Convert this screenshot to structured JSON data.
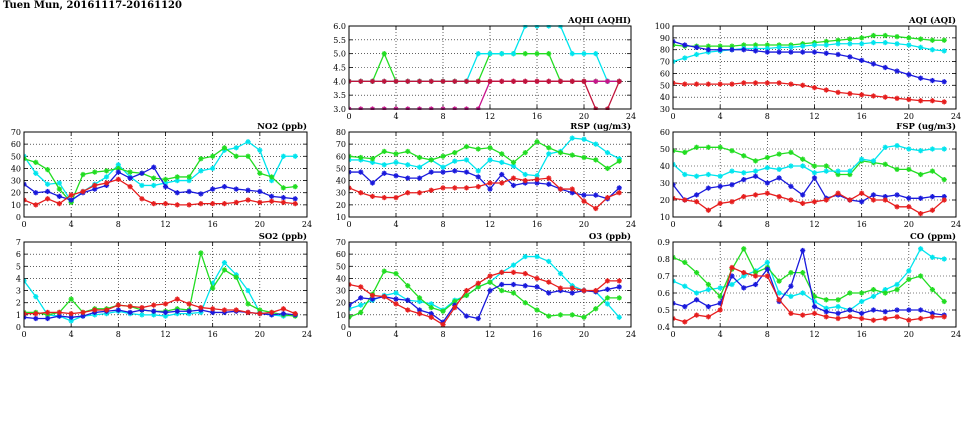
{
  "title": "Tuen Mun, 20161117-20161120",
  "series_colors": {
    "cyan": "#00e5ee",
    "green": "#22dd22",
    "blue": "#1a1adc",
    "red": "#e61e1e",
    "crimson": "#c0143c",
    "magenta": "#c8148c"
  },
  "chart_data": [
    {
      "id": "aqhi",
      "type": "line",
      "title": "AQHI (AQHI)",
      "xlim": [
        0,
        24
      ],
      "ylim": [
        3,
        6
      ],
      "xticks": [
        0,
        4,
        8,
        12,
        16,
        20,
        24
      ],
      "yticks": [
        "3.0",
        "3.5",
        "4.0",
        "4.5",
        "5.0",
        "5.5",
        "6.0"
      ],
      "grid": true,
      "series": [
        {
          "color": "green",
          "values": [
            4,
            4,
            4,
            5,
            4,
            4,
            4,
            4,
            4,
            4,
            4,
            4,
            5,
            5,
            5,
            5,
            5,
            5,
            4,
            4,
            4,
            4,
            4,
            4
          ]
        },
        {
          "color": "cyan",
          "values": [
            4,
            4,
            4,
            4,
            4,
            4,
            4,
            4,
            4,
            4,
            4,
            5,
            5,
            5,
            5,
            6,
            6,
            6,
            6,
            5,
            5,
            5,
            4,
            4
          ]
        },
        {
          "color": "magenta",
          "values": [
            3,
            3,
            3,
            3,
            3,
            3,
            3,
            3,
            3,
            3,
            3,
            3,
            4,
            4,
            4,
            4,
            4,
            4,
            4,
            4,
            4,
            4,
            4,
            4
          ]
        },
        {
          "color": "crimson",
          "values": [
            4,
            4,
            4,
            4,
            4,
            4,
            4,
            4,
            4,
            4,
            4,
            4,
            4,
            4,
            4,
            4,
            4,
            4,
            4,
            4,
            4,
            3,
            3,
            4
          ]
        }
      ]
    },
    {
      "id": "aqi",
      "type": "line",
      "title": "AQI (AQI)",
      "xlim": [
        0,
        24
      ],
      "ylim": [
        30,
        100
      ],
      "xticks": [
        0,
        4,
        8,
        12,
        16,
        20,
        24
      ],
      "yticks": [
        "30",
        "40",
        "50",
        "60",
        "70",
        "80",
        "90",
        "100"
      ],
      "grid": true,
      "series": [
        {
          "color": "green",
          "values": [
            84,
            83,
            83,
            83,
            83,
            83,
            84,
            84,
            84,
            84,
            84,
            85,
            86,
            87,
            88,
            89,
            90,
            92,
            92,
            91,
            90,
            89,
            88,
            88
          ]
        },
        {
          "color": "cyan",
          "values": [
            70,
            73,
            76,
            78,
            79,
            80,
            81,
            81,
            81,
            82,
            82,
            83,
            84,
            84,
            85,
            85,
            85,
            86,
            86,
            85,
            84,
            82,
            80,
            79
          ]
        },
        {
          "color": "blue",
          "values": [
            87,
            84,
            82,
            80,
            80,
            80,
            80,
            79,
            78,
            78,
            78,
            78,
            78,
            77,
            76,
            74,
            71,
            68,
            65,
            62,
            59,
            56,
            54,
            53
          ]
        },
        {
          "color": "red",
          "values": [
            52,
            51,
            51,
            51,
            51,
            51,
            52,
            52,
            52,
            52,
            51,
            50,
            48,
            46,
            44,
            43,
            42,
            41,
            40,
            39,
            38,
            37,
            37,
            36
          ]
        }
      ]
    },
    {
      "id": "no2",
      "type": "line",
      "title": "NO2 (ppb)",
      "xlim": [
        0,
        24
      ],
      "ylim": [
        0,
        70
      ],
      "xticks": [
        0,
        4,
        8,
        12,
        16,
        20,
        24
      ],
      "yticks": [
        "0",
        "10",
        "20",
        "30",
        "40",
        "50",
        "60",
        "70"
      ],
      "grid": true,
      "series": [
        {
          "color": "cyan",
          "values": [
            50,
            36,
            27,
            28,
            13,
            21,
            27,
            33,
            43,
            33,
            26,
            26,
            28,
            30,
            30,
            38,
            40,
            55,
            57,
            62,
            55,
            30,
            50,
            50
          ]
        },
        {
          "color": "green",
          "values": [
            48,
            45,
            39,
            23,
            12,
            35,
            37,
            38,
            40,
            37,
            36,
            32,
            31,
            33,
            33,
            48,
            50,
            57,
            50,
            50,
            36,
            33,
            24,
            25
          ]
        },
        {
          "color": "blue",
          "values": [
            27,
            20,
            21,
            17,
            14,
            20,
            23,
            26,
            37,
            32,
            36,
            41,
            25,
            20,
            21,
            19,
            23,
            25,
            23,
            22,
            21,
            17,
            16,
            15
          ]
        },
        {
          "color": "red",
          "values": [
            14,
            10,
            15,
            11,
            18,
            21,
            26,
            28,
            31,
            25,
            15,
            11,
            11,
            10,
            10,
            11,
            11,
            11,
            12,
            14,
            12,
            13,
            12,
            11
          ]
        }
      ]
    },
    {
      "id": "rsp",
      "type": "line",
      "title": "RSP (ug/m3)",
      "xlim": [
        0,
        24
      ],
      "ylim": [
        10,
        80
      ],
      "xticks": [
        0,
        4,
        8,
        12,
        16,
        20,
        24
      ],
      "yticks": [
        "10",
        "20",
        "30",
        "40",
        "50",
        "60",
        "70",
        "80"
      ],
      "grid": true,
      "series": [
        {
          "color": "cyan",
          "values": [
            57,
            57,
            55,
            53,
            55,
            53,
            51,
            57,
            51,
            56,
            57,
            48,
            57,
            55,
            52,
            45,
            44,
            62,
            64,
            75,
            74,
            70,
            63,
            58
          ]
        },
        {
          "color": "green",
          "values": [
            60,
            59,
            58,
            64,
            62,
            64,
            59,
            57,
            60,
            63,
            68,
            66,
            67,
            62,
            55,
            63,
            72,
            67,
            63,
            61,
            59,
            57,
            50,
            56
          ]
        },
        {
          "color": "blue",
          "values": [
            47,
            47,
            38,
            46,
            44,
            42,
            42,
            47,
            47,
            48,
            47,
            43,
            33,
            45,
            36,
            38,
            38,
            37,
            33,
            30,
            28,
            28,
            25,
            34
          ]
        },
        {
          "color": "red",
          "values": [
            34,
            30,
            27,
            26,
            26,
            30,
            30,
            32,
            34,
            34,
            34,
            35,
            38,
            38,
            42,
            40,
            41,
            42,
            33,
            33,
            23,
            17,
            26,
            30
          ]
        }
      ]
    },
    {
      "id": "fsp",
      "type": "line",
      "title": "FSP (ug/m3)",
      "xlim": [
        0,
        24
      ],
      "ylim": [
        10,
        60
      ],
      "xticks": [
        0,
        4,
        8,
        12,
        16,
        20,
        24
      ],
      "yticks": [
        "10",
        "20",
        "30",
        "40",
        "50",
        "60"
      ],
      "grid": true,
      "series": [
        {
          "color": "green",
          "values": [
            49,
            48,
            51,
            51,
            51,
            49,
            46,
            43,
            45,
            47,
            48,
            44,
            40,
            40,
            35,
            35,
            43,
            42,
            41,
            38,
            38,
            35,
            37,
            32
          ]
        },
        {
          "color": "cyan",
          "values": [
            41,
            35,
            34,
            35,
            34,
            37,
            36,
            37,
            39,
            38,
            40,
            40,
            36,
            37,
            37,
            37,
            44,
            43,
            51,
            52,
            50,
            49,
            50,
            50
          ]
        },
        {
          "color": "blue",
          "values": [
            29,
            20,
            23,
            27,
            28,
            29,
            32,
            34,
            30,
            33,
            28,
            23,
            33,
            21,
            23,
            20,
            19,
            23,
            22,
            23,
            21,
            21,
            22,
            22
          ]
        },
        {
          "color": "red",
          "values": [
            21,
            20,
            19,
            14,
            18,
            19,
            22,
            23,
            24,
            22,
            20,
            18,
            19,
            20,
            24,
            20,
            24,
            20,
            20,
            16,
            16,
            12,
            14,
            20
          ]
        }
      ]
    },
    {
      "id": "so2",
      "type": "line",
      "title": "SO2 (ppb)",
      "xlim": [
        0,
        24
      ],
      "ylim": [
        0,
        7
      ],
      "xticks": [
        0,
        4,
        8,
        12,
        16,
        20,
        24
      ],
      "yticks": [
        "0",
        "1",
        "2",
        "3",
        "4",
        "5",
        "6",
        "7"
      ],
      "grid": true,
      "series": [
        {
          "color": "cyan",
          "values": [
            3.8,
            2.5,
            1.0,
            0.9,
            0.5,
            0.9,
            1.0,
            1.1,
            1.3,
            1.1,
            1.0,
            1.0,
            0.9,
            1.1,
            1.1,
            1.2,
            3.6,
            5.3,
            4.3,
            3.0,
            1.2,
            1.0,
            0.9,
            1.0
          ]
        },
        {
          "color": "green",
          "values": [
            1.2,
            1.2,
            1.0,
            1.2,
            2.3,
            1.2,
            1.5,
            1.5,
            1.8,
            1.7,
            1.4,
            1.3,
            1.3,
            1.5,
            1.4,
            6.1,
            3.2,
            4.7,
            4.1,
            1.9,
            1.4,
            1.2,
            1.0,
            0.9
          ]
        },
        {
          "color": "blue",
          "values": [
            0.8,
            0.7,
            0.7,
            0.9,
            0.8,
            0.9,
            1.2,
            1.3,
            1.4,
            1.2,
            1.4,
            1.3,
            1.2,
            1.3,
            1.3,
            1.4,
            1.2,
            1.2,
            1.3,
            1.2,
            1.1,
            1.0,
            1.1,
            1.0
          ]
        },
        {
          "color": "red",
          "values": [
            1.1,
            1.1,
            1.2,
            1.2,
            1.1,
            1.2,
            1.4,
            1.4,
            1.8,
            1.7,
            1.6,
            1.8,
            1.9,
            2.3,
            1.9,
            1.6,
            1.5,
            1.4,
            1.4,
            1.2,
            1.1,
            1.2,
            1.5,
            1.1
          ]
        }
      ]
    },
    {
      "id": "o3",
      "type": "line",
      "title": "O3 (ppb)",
      "xlim": [
        0,
        24
      ],
      "ylim": [
        0,
        70
      ],
      "xticks": [
        0,
        4,
        8,
        12,
        16,
        20,
        24
      ],
      "yticks": [
        "0",
        "10",
        "20",
        "30",
        "40",
        "50",
        "60",
        "70"
      ],
      "grid": true,
      "series": [
        {
          "color": "cyan",
          "values": [
            15,
            18,
            22,
            26,
            28,
            22,
            21,
            19,
            14,
            22,
            26,
            33,
            37,
            45,
            51,
            58,
            58,
            54,
            44,
            34,
            30,
            29,
            19,
            8
          ]
        },
        {
          "color": "green",
          "values": [
            8,
            12,
            27,
            46,
            44,
            34,
            24,
            16,
            13,
            21,
            26,
            33,
            37,
            30,
            28,
            20,
            14,
            9,
            10,
            10,
            8,
            15,
            24,
            24
          ]
        },
        {
          "color": "blue",
          "values": [
            18,
            24,
            23,
            25,
            23,
            22,
            14,
            11,
            4,
            18,
            9,
            7,
            30,
            35,
            35,
            34,
            33,
            28,
            30,
            28,
            30,
            29,
            31,
            33
          ]
        },
        {
          "color": "red",
          "values": [
            35,
            33,
            26,
            25,
            19,
            14,
            11,
            8,
            2,
            16,
            30,
            36,
            42,
            45,
            45,
            44,
            40,
            37,
            32,
            32,
            30,
            30,
            38,
            38
          ]
        }
      ]
    },
    {
      "id": "co",
      "type": "line",
      "title": "CO (ppm)",
      "xlim": [
        0,
        24
      ],
      "ylim": [
        0.4,
        0.9
      ],
      "xticks": [
        0,
        4,
        8,
        12,
        16,
        20,
        24
      ],
      "yticks": [
        "0.4",
        "0.5",
        "0.6",
        "0.7",
        "0.8",
        "0.9"
      ],
      "grid": true,
      "series": [
        {
          "color": "cyan",
          "values": [
            0.67,
            0.64,
            0.6,
            0.62,
            0.63,
            0.65,
            0.7,
            0.73,
            0.78,
            0.6,
            0.58,
            0.6,
            0.55,
            0.51,
            0.52,
            0.5,
            0.55,
            0.58,
            0.62,
            0.65,
            0.73,
            0.86,
            0.81,
            0.8
          ]
        },
        {
          "color": "green",
          "values": [
            0.81,
            0.78,
            0.72,
            0.65,
            0.58,
            0.74,
            0.86,
            0.72,
            0.75,
            0.67,
            0.72,
            0.72,
            0.58,
            0.56,
            0.56,
            0.6,
            0.6,
            0.62,
            0.6,
            0.62,
            0.68,
            0.7,
            0.62,
            0.55
          ]
        },
        {
          "color": "blue",
          "values": [
            0.54,
            0.52,
            0.56,
            0.52,
            0.54,
            0.7,
            0.63,
            0.65,
            0.74,
            0.55,
            0.64,
            0.85,
            0.52,
            0.49,
            0.48,
            0.5,
            0.48,
            0.5,
            0.49,
            0.5,
            0.5,
            0.5,
            0.48,
            0.47
          ]
        },
        {
          "color": "red",
          "values": [
            0.45,
            0.43,
            0.47,
            0.46,
            0.5,
            0.75,
            0.72,
            0.7,
            0.7,
            0.56,
            0.48,
            0.47,
            0.48,
            0.46,
            0.45,
            0.46,
            0.45,
            0.44,
            0.45,
            0.46,
            0.44,
            0.45,
            0.46,
            0.46
          ]
        }
      ]
    }
  ]
}
